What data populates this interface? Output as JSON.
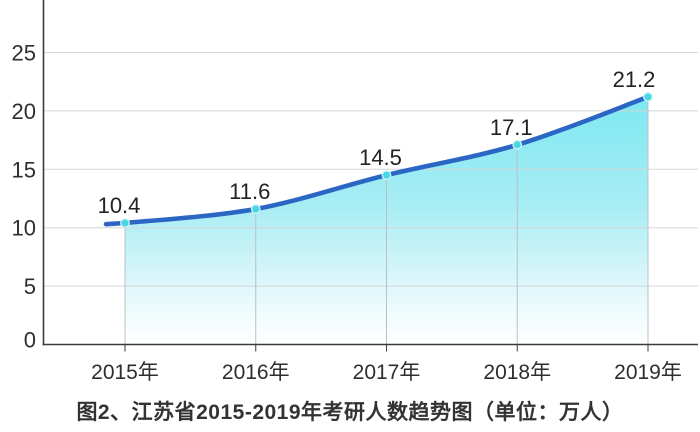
{
  "colors": {
    "line": "#2b66c5",
    "area_top": "#7de8f1",
    "area_mid": "#a9edf4",
    "area_low": "#e8f9fb",
    "area_bottom": "#ffffff",
    "marker": "#45d7e4",
    "marker_ring": "#c9f3f7",
    "grid": "#d3d6d8",
    "drop_line": "#b9c0c4",
    "axis": "#3c3c3c",
    "tick_text": "#2e2e2e",
    "data_label": "#222222",
    "caption_text": "#333333"
  },
  "chart_data": {
    "type": "area",
    "title": "图2、江苏省2015-2019年考研人数趋势图（单位：万人）",
    "unit": "万人",
    "categories": [
      "2015年",
      "2016年",
      "2017年",
      "2018年",
      "2019年"
    ],
    "values": [
      10.4,
      11.6,
      14.5,
      17.1,
      21.2
    ],
    "data_labels": [
      "10.4",
      "11.6",
      "14.5",
      "17.1",
      "21.2"
    ],
    "yticks": [
      0,
      5,
      10,
      15,
      20,
      25
    ],
    "ylim": [
      0,
      29.5
    ],
    "xlabel": "",
    "ylabel": "",
    "grid": "horizontal",
    "legend": "none"
  }
}
